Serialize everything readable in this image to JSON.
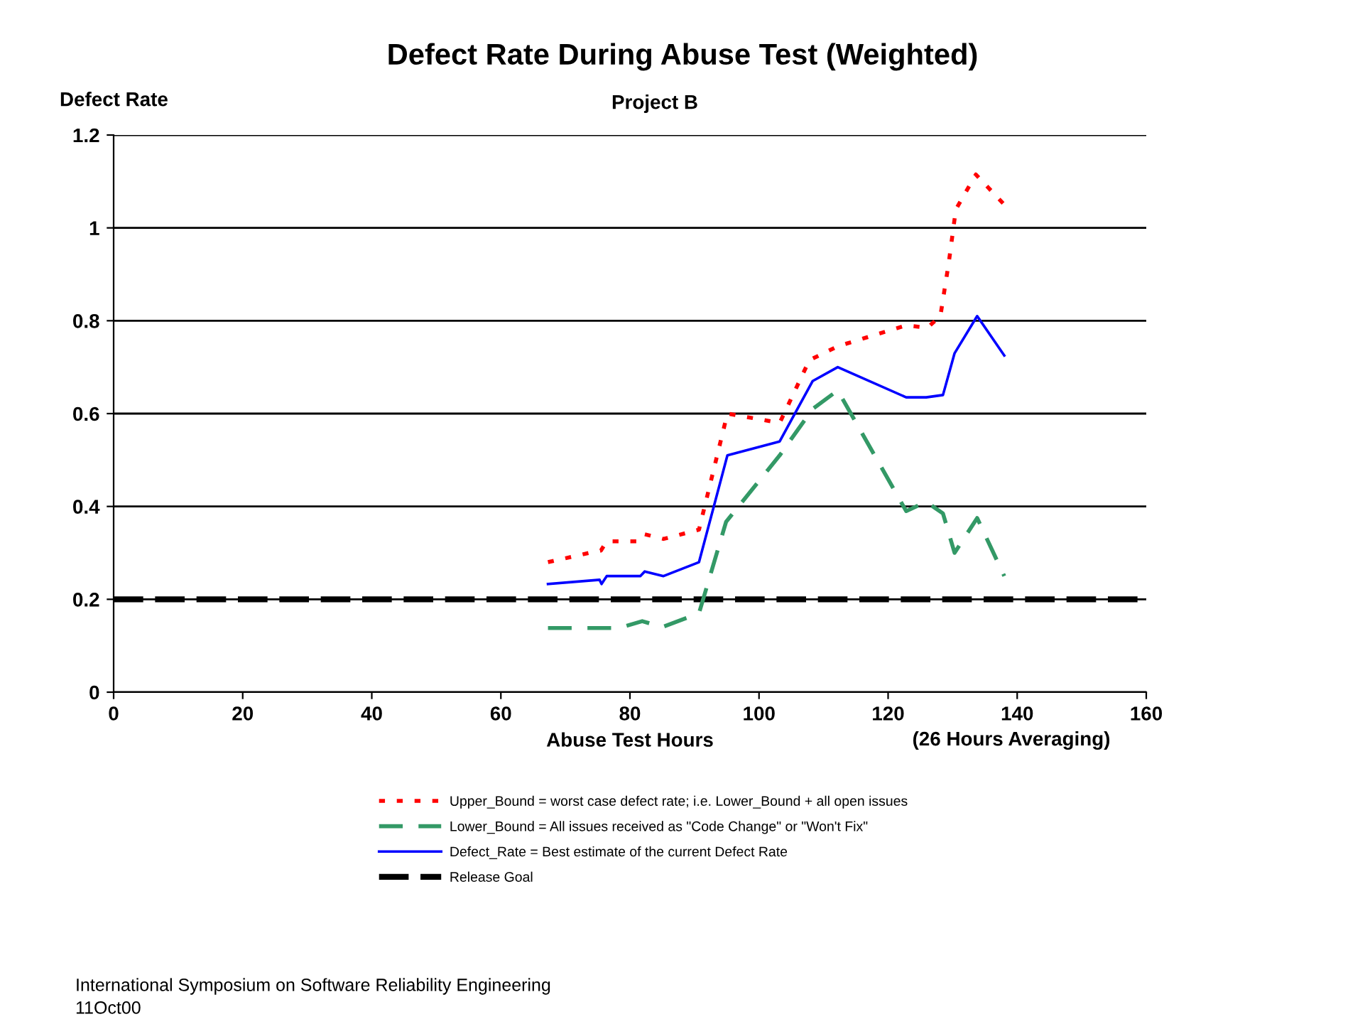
{
  "chart_data": {
    "type": "line",
    "title": "Defect Rate During Abuse Test (Weighted)",
    "subtitle": "Project B",
    "xlabel": "Abuse Test Hours",
    "ylabel": "Defect Rate",
    "xlim": [
      0,
      160
    ],
    "xticks": [
      0,
      20,
      40,
      60,
      80,
      100,
      120,
      140,
      160
    ],
    "ylim": [
      0,
      1.2
    ],
    "yticks": [
      0,
      0.2,
      0.4,
      0.6,
      0.8,
      1,
      1.2
    ],
    "grid": "y",
    "legend": "bottom",
    "marker": "none",
    "series": [
      {
        "name": "Upper_Bound = worst case defect rate; i.e. Lower_Bound + all open issues",
        "color": "#ff0000",
        "line_style": "dotted",
        "x": [
          67.3,
          73.7,
          75.5,
          76.4,
          81.4,
          82.3,
          85.2,
          90.7,
          95.1,
          103.2,
          107.8,
          112.2,
          122.8,
          126.1,
          128.1,
          129.4,
          130.5,
          133.6,
          138.0
        ],
        "values": [
          0.28,
          0.3,
          0.305,
          0.325,
          0.325,
          0.34,
          0.33,
          0.35,
          0.6,
          0.58,
          0.715,
          0.745,
          0.79,
          0.785,
          0.81,
          0.925,
          1.04,
          1.115,
          1.05
        ]
      },
      {
        "name": "Lower_Bound = All issues received as \"Code Change\" or \"Won't Fix\"",
        "color": "#339966",
        "line_style": "dashed",
        "x": [
          67.3,
          78.3,
          81.9,
          85.0,
          90.7,
          94.9,
          103.2,
          108.3,
          112.2,
          122.8,
          125.9,
          128.5,
          130.3,
          133.8,
          138.0
        ],
        "values": [
          0.138,
          0.138,
          0.153,
          0.14,
          0.17,
          0.367,
          0.51,
          0.61,
          0.65,
          0.39,
          0.41,
          0.385,
          0.3,
          0.375,
          0.25
        ]
      },
      {
        "name": "Defect_Rate = Best estimate of the current Defect Rate",
        "color": "#0000ff",
        "line_style": "solid",
        "x": [
          67.3,
          75.3,
          75.6,
          76.4,
          81.6,
          82.3,
          85.2,
          90.7,
          95.1,
          103.2,
          108.3,
          112.2,
          122.8,
          125.9,
          128.5,
          130.3,
          133.8,
          138.0
        ],
        "values": [
          0.233,
          0.242,
          0.233,
          0.25,
          0.25,
          0.26,
          0.25,
          0.28,
          0.51,
          0.54,
          0.67,
          0.7,
          0.635,
          0.635,
          0.64,
          0.73,
          0.81,
          0.725
        ]
      }
    ],
    "ref_lines": [
      {
        "axis": "y",
        "value": 0.2,
        "label": "Release Goal",
        "color": "#000000",
        "line_style": "dashed"
      }
    ],
    "annotations": [
      "(26 Hours Averaging)",
      "International Symposium on Software Reliability Engineering",
      "11Oct00"
    ]
  }
}
